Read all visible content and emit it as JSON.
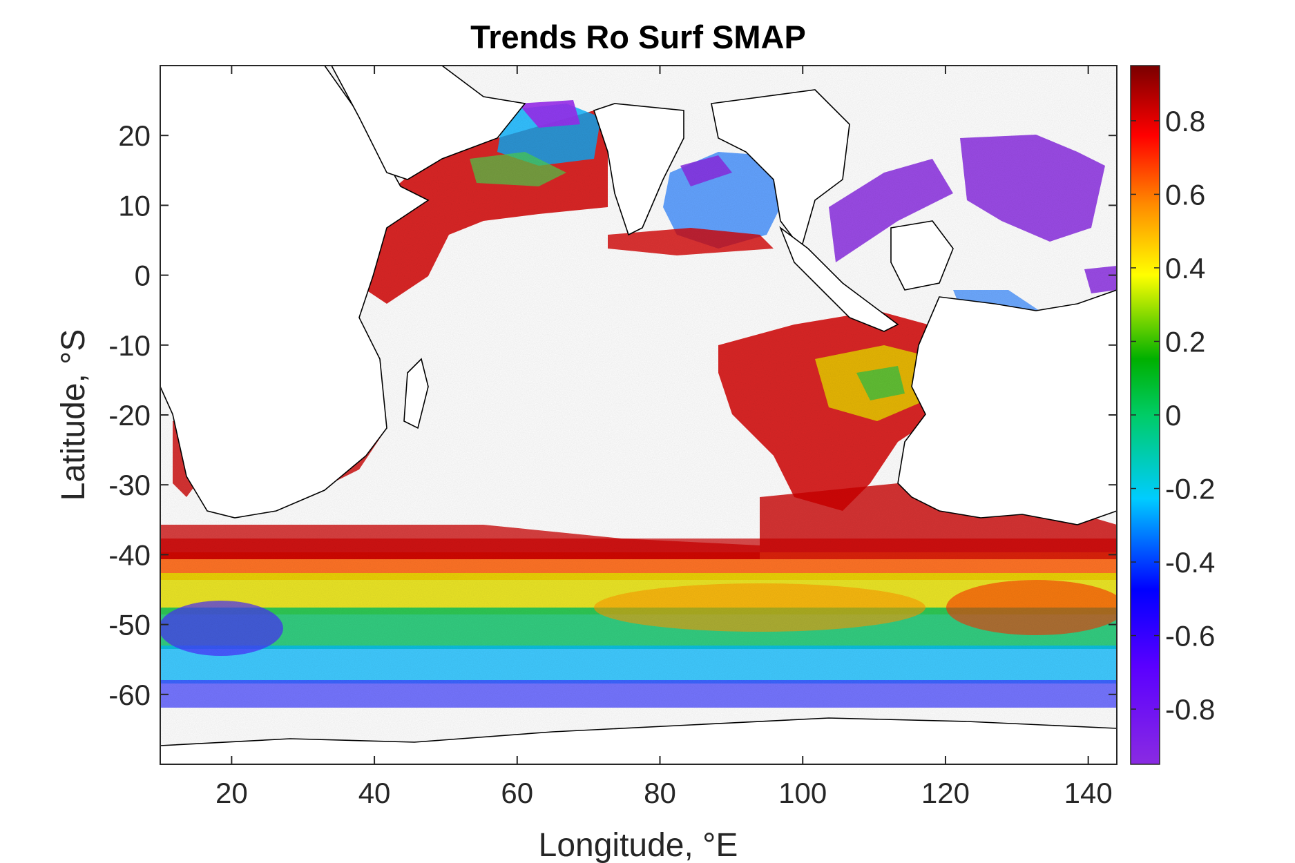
{
  "map": {
    "title": "Trends Ro Surf SMAP",
    "xlabel": "Longitude, °E",
    "ylabel": "Latitude, °S",
    "lon_range": [
      10,
      144
    ],
    "lat_range": [
      -70,
      30
    ],
    "x_ticks": [
      20,
      40,
      60,
      80,
      100,
      120,
      140
    ],
    "x_tick_labels": [
      "20",
      "40",
      "60",
      "80",
      "100",
      "120",
      "140"
    ],
    "y_ticks": [
      20,
      10,
      0,
      -10,
      -20,
      -30,
      -40,
      -50,
      -60
    ],
    "y_tick_labels": [
      "20",
      "10",
      "0",
      "-10",
      "-20",
      "-30",
      "-40",
      "-50",
      "-60"
    ],
    "colorbar": {
      "colormap": "jet-like (purple to dark red)",
      "range": [
        -0.95,
        0.95
      ],
      "ticks": [
        0.8,
        0.6,
        0.4,
        0.2,
        0,
        -0.2,
        -0.4,
        -0.6,
        -0.8
      ],
      "tick_labels": [
        "0.8",
        "0.6",
        "0.4",
        "0.2",
        "0",
        "-0.2",
        "-0.4",
        "-0.6",
        "-0.8"
      ],
      "stops": [
        "#8a2be2",
        "#0000ff",
        "#00ffff",
        "#00c000",
        "#ffff00",
        "#ff8000",
        "#ff0000",
        "#800000"
      ]
    },
    "land_color": "#ffffff",
    "coastline_color": "#000000"
  }
}
